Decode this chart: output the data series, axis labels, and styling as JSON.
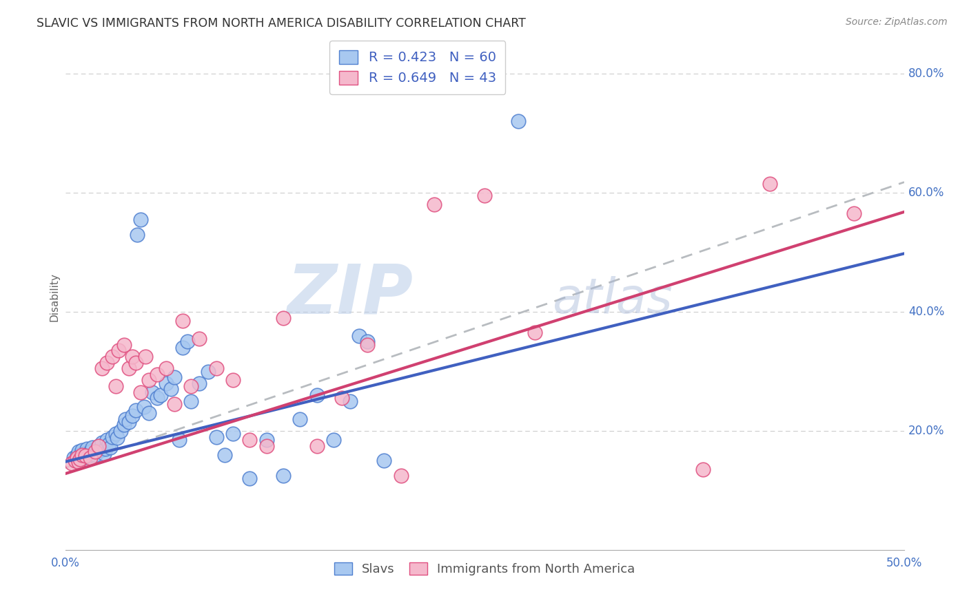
{
  "title": "SLAVIC VS IMMIGRANTS FROM NORTH AMERICA DISABILITY CORRELATION CHART",
  "source": "Source: ZipAtlas.com",
  "ylabel": "Disability",
  "xlim": [
    0.0,
    0.5
  ],
  "ylim": [
    0.0,
    0.85
  ],
  "yticks": [
    0.2,
    0.4,
    0.6,
    0.8
  ],
  "ytick_labels": [
    "20.0%",
    "40.0%",
    "60.0%",
    "80.0%"
  ],
  "xticks": [
    0.0,
    0.125,
    0.25,
    0.375,
    0.5
  ],
  "xtick_labels": [
    "0.0%",
    "",
    "",
    "",
    "50.0%"
  ],
  "r_slavs": 0.423,
  "n_slavs": 60,
  "r_immigrants": 0.649,
  "n_immigrants": 43,
  "legend_label_1": "Slavs",
  "legend_label_2": "Immigrants from North America",
  "color_slavs_fill": "#a8c8f0",
  "color_immigrants_fill": "#f5b8cc",
  "color_slavs_edge": "#5080d0",
  "color_immigrants_edge": "#e05080",
  "color_slavs_line": "#4060c0",
  "color_immigrants_line": "#d04070",
  "color_dashed": "#b8bcc0",
  "watermark_zip": "ZIP",
  "watermark_atlas": "atlas",
  "slavs_x": [
    0.005,
    0.007,
    0.008,
    0.009,
    0.01,
    0.01,
    0.011,
    0.012,
    0.013,
    0.014,
    0.015,
    0.016,
    0.018,
    0.02,
    0.021,
    0.022,
    0.023,
    0.024,
    0.025,
    0.026,
    0.027,
    0.028,
    0.03,
    0.031,
    0.033,
    0.035,
    0.036,
    0.038,
    0.04,
    0.042,
    0.043,
    0.045,
    0.047,
    0.05,
    0.052,
    0.055,
    0.057,
    0.06,
    0.063,
    0.065,
    0.068,
    0.07,
    0.073,
    0.075,
    0.08,
    0.085,
    0.09,
    0.095,
    0.1,
    0.11,
    0.12,
    0.13,
    0.14,
    0.15,
    0.16,
    0.17,
    0.175,
    0.18,
    0.19,
    0.27
  ],
  "slavs_y": [
    0.155,
    0.16,
    0.165,
    0.158,
    0.162,
    0.168,
    0.155,
    0.163,
    0.17,
    0.158,
    0.165,
    0.172,
    0.16,
    0.175,
    0.168,
    0.18,
    0.162,
    0.17,
    0.185,
    0.178,
    0.172,
    0.19,
    0.195,
    0.188,
    0.2,
    0.21,
    0.22,
    0.215,
    0.225,
    0.235,
    0.53,
    0.555,
    0.24,
    0.23,
    0.265,
    0.255,
    0.26,
    0.28,
    0.27,
    0.29,
    0.185,
    0.34,
    0.35,
    0.25,
    0.28,
    0.3,
    0.19,
    0.16,
    0.195,
    0.12,
    0.185,
    0.125,
    0.22,
    0.26,
    0.185,
    0.25,
    0.36,
    0.35,
    0.15,
    0.72
  ],
  "immigrants_x": [
    0.004,
    0.006,
    0.007,
    0.008,
    0.009,
    0.01,
    0.012,
    0.015,
    0.018,
    0.02,
    0.022,
    0.025,
    0.028,
    0.03,
    0.032,
    0.035,
    0.038,
    0.04,
    0.042,
    0.045,
    0.048,
    0.05,
    0.055,
    0.06,
    0.065,
    0.07,
    0.075,
    0.08,
    0.09,
    0.1,
    0.11,
    0.12,
    0.13,
    0.15,
    0.165,
    0.18,
    0.2,
    0.22,
    0.25,
    0.28,
    0.38,
    0.42,
    0.47
  ],
  "immigrants_y": [
    0.145,
    0.15,
    0.155,
    0.148,
    0.152,
    0.16,
    0.158,
    0.155,
    0.165,
    0.175,
    0.305,
    0.315,
    0.325,
    0.275,
    0.335,
    0.345,
    0.305,
    0.325,
    0.315,
    0.265,
    0.325,
    0.285,
    0.295,
    0.305,
    0.245,
    0.385,
    0.275,
    0.355,
    0.305,
    0.285,
    0.185,
    0.175,
    0.39,
    0.175,
    0.255,
    0.345,
    0.125,
    0.58,
    0.595,
    0.365,
    0.135,
    0.615,
    0.565
  ],
  "slavs_line_x": [
    0.0,
    0.5
  ],
  "slavs_line_y": [
    0.148,
    0.498
  ],
  "immigrants_line_x": [
    0.0,
    0.5
  ],
  "immigrants_line_y": [
    0.128,
    0.568
  ],
  "dashed_line_x": [
    0.0,
    0.5
  ],
  "dashed_line_y": [
    0.138,
    0.618
  ]
}
